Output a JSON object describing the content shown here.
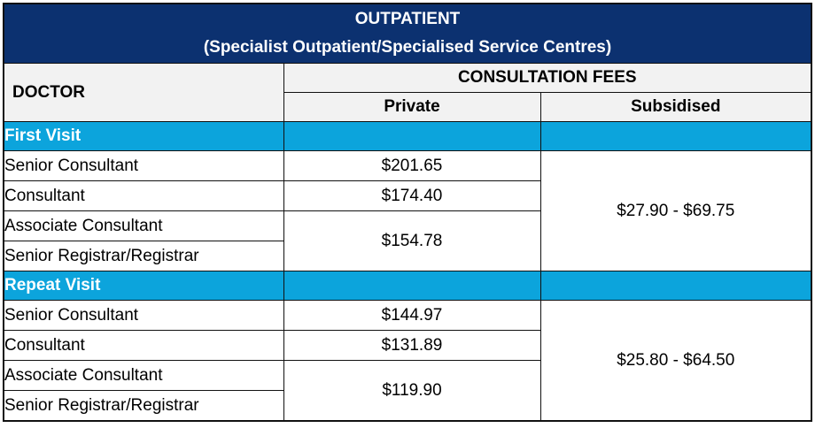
{
  "title": {
    "line1": "OUTPATIENT",
    "line2": "(Specialist Outpatient/Specialised Service Centres)"
  },
  "header": {
    "doctor": "DOCTOR",
    "fees": "CONSULTATION FEES",
    "private": "Private",
    "subsidised": "Subsidised"
  },
  "sections": [
    {
      "label": "First Visit",
      "rows": [
        {
          "doctor": "Senior Consultant",
          "private": "$201.65"
        },
        {
          "doctor": "Consultant",
          "private": "$174.40"
        },
        {
          "doctor": "Associate Consultant",
          "private": "$154.78"
        },
        {
          "doctor": "Senior Registrar/Registrar"
        }
      ],
      "subsidised": "$27.90 - $69.75"
    },
    {
      "label": "Repeat Visit",
      "rows": [
        {
          "doctor": "Senior Consultant",
          "private": "$144.97"
        },
        {
          "doctor": "Consultant",
          "private": "$131.89"
        },
        {
          "doctor": "Associate Consultant",
          "private": "$119.90"
        },
        {
          "doctor": "Senior Registrar/Registrar"
        }
      ],
      "subsidised": "$25.80 - $64.50"
    }
  ],
  "colors": {
    "title_bg": "#0c3170",
    "section_bg": "#0ca4dc",
    "header_bg": "#f2f2f2"
  }
}
